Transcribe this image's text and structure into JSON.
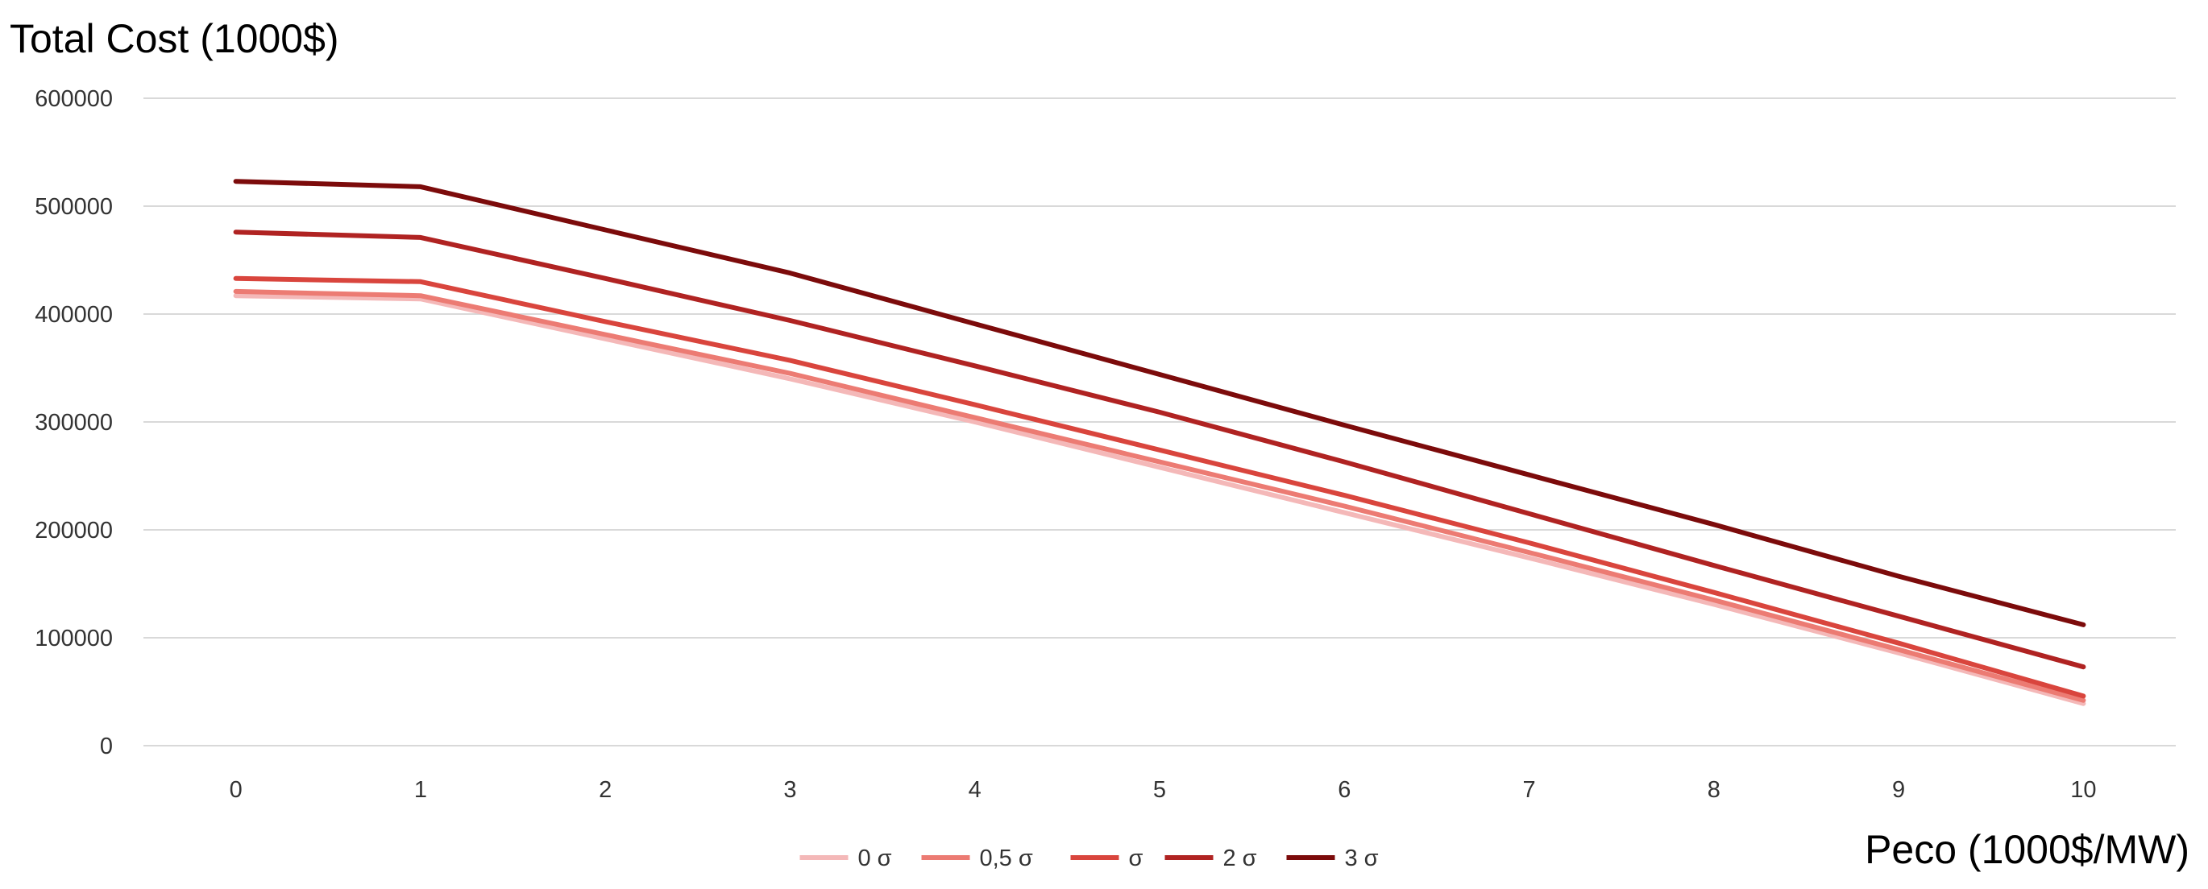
{
  "chart_data": {
    "type": "line",
    "title": "",
    "ylabel": "Total Cost (1000$)",
    "xlabel": "Peco (1000$/MW)",
    "x": [
      0,
      1,
      2,
      3,
      4,
      5,
      6,
      7,
      8,
      9,
      10
    ],
    "ylim": [
      0,
      600000
    ],
    "yticks": [
      0,
      100000,
      200000,
      300000,
      400000,
      500000,
      600000
    ],
    "grid": true,
    "legend": "bottom-center",
    "series": [
      {
        "name": "0 σ",
        "color": "#f4b8b8",
        "values": [
          417000,
          414000,
          377000,
          340000,
          300000,
          258000,
          216000,
          174000,
          131000,
          86000,
          39000
        ]
      },
      {
        "name": "0,5 σ",
        "color": "#ec7b73",
        "values": [
          421000,
          417000,
          381000,
          345000,
          304000,
          263000,
          222000,
          179000,
          135000,
          89000,
          42000
        ]
      },
      {
        "name": "σ",
        "color": "#d9453d",
        "values": [
          433000,
          430000,
          393000,
          357000,
          316000,
          274000,
          232000,
          188000,
          142000,
          95000,
          46000
        ]
      },
      {
        "name": "2 σ",
        "color": "#b02322",
        "values": [
          476000,
          471000,
          433000,
          394000,
          352000,
          309000,
          263000,
          215000,
          167000,
          120000,
          73000
        ]
      },
      {
        "name": "3 σ",
        "color": "#7c0b0b",
        "values": [
          523000,
          518000,
          478000,
          438000,
          391000,
          344000,
          297000,
          251000,
          205000,
          157000,
          112000
        ]
      }
    ]
  }
}
